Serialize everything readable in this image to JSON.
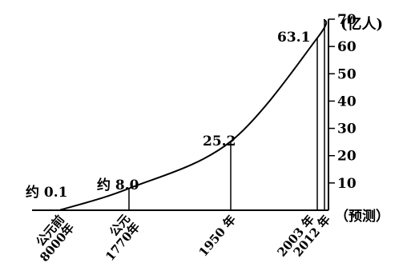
{
  "chart_data": {
    "type": "line",
    "title": "",
    "xlabel": "",
    "ylabel": "",
    "y_unit_label": "(亿人)",
    "x_note": "（预测）",
    "ylim": [
      0,
      70
    ],
    "y_ticks": [
      "10",
      "20",
      "30",
      "40",
      "50",
      "60",
      "70"
    ],
    "x_categories": [
      "公元前\n8000年",
      "公元\n1770年",
      "1950 年",
      "2003 年",
      "2012 年"
    ],
    "points": [
      {
        "x": "公元前8000年",
        "y": 0.1,
        "label": "约 0.1"
      },
      {
        "x": "公元1770年",
        "y": 8.0,
        "label": "约 8.0"
      },
      {
        "x": "1950年",
        "y": 25.2,
        "label": "25.2"
      },
      {
        "x": "2003年",
        "y": 63.1,
        "label": "63.1"
      },
      {
        "x": "2012年",
        "y": 70,
        "label": ""
      }
    ],
    "grid": false,
    "legend": "none"
  }
}
